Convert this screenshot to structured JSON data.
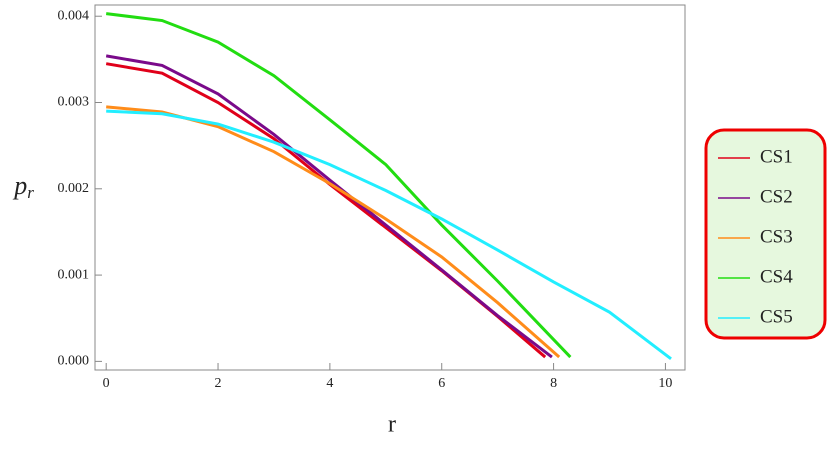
{
  "chart_data": {
    "type": "line",
    "x_label": "r",
    "y_label": {
      "base": "p",
      "sub": "r"
    },
    "xlim": [
      -0.2,
      10.35
    ],
    "xticks": [
      0,
      2,
      4,
      6,
      8,
      10
    ],
    "ylim": [
      -0.0001,
      0.00413
    ],
    "yticks": [
      {
        "value": 0,
        "label": "0.000"
      },
      {
        "value": 0.001,
        "label": "0.001"
      },
      {
        "value": 0.002,
        "label": "0.002"
      },
      {
        "value": 0.003,
        "label": "0.003"
      },
      {
        "value": 0.004,
        "label": "0.004"
      }
    ],
    "legend": "right",
    "series": [
      {
        "name": "CS1",
        "color": "#e0001a",
        "x": [
          0,
          1,
          2,
          3,
          4,
          5,
          6,
          7,
          7.85
        ],
        "values": [
          0.00345,
          0.00334,
          0.003,
          0.00258,
          0.00205,
          0.00155,
          0.00105,
          0.00052,
          5e-05
        ]
      },
      {
        "name": "CS2",
        "color": "#7a0a8a",
        "x": [
          0,
          1,
          2,
          3,
          4,
          5,
          6,
          7,
          7.97
        ],
        "values": [
          0.00354,
          0.00343,
          0.0031,
          0.00263,
          0.0021,
          0.00158,
          0.00106,
          0.00053,
          5e-05
        ]
      },
      {
        "name": "CS3",
        "color": "#ff8c1a",
        "x": [
          0,
          1,
          2,
          3,
          4,
          5,
          6,
          7,
          8.1
        ],
        "values": [
          0.00295,
          0.00289,
          0.00272,
          0.00243,
          0.00206,
          0.00165,
          0.00121,
          0.00068,
          5e-05
        ]
      },
      {
        "name": "CS4",
        "color": "#22dd11",
        "x": [
          0,
          1,
          2,
          3,
          4,
          5,
          6,
          7,
          8.3
        ],
        "values": [
          0.00403,
          0.00395,
          0.0037,
          0.00331,
          0.0028,
          0.00228,
          0.00158,
          0.00093,
          5e-05
        ]
      },
      {
        "name": "CS5",
        "color": "#22eeff",
        "x": [
          0,
          1,
          2,
          3,
          4,
          5,
          6,
          7,
          8,
          9,
          10.1
        ],
        "values": [
          0.0029,
          0.00287,
          0.00275,
          0.00254,
          0.00228,
          0.00198,
          0.00165,
          0.00129,
          0.00092,
          0.00057,
          3e-05
        ]
      }
    ]
  }
}
